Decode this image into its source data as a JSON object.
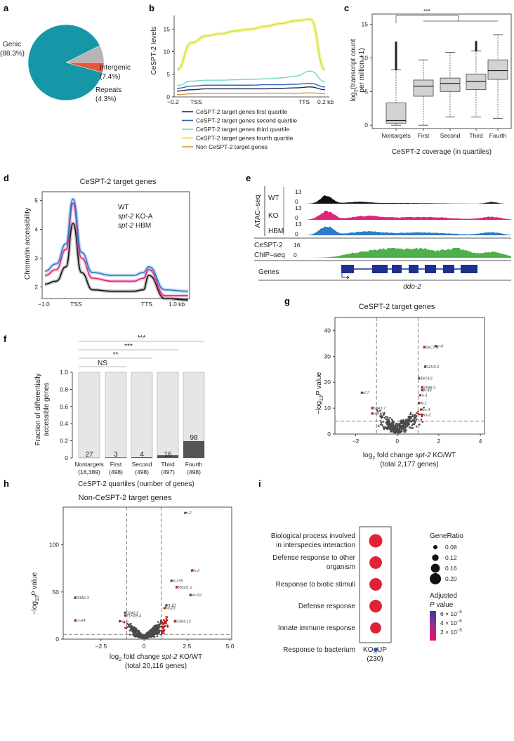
{
  "panels": [
    "a",
    "b",
    "c",
    "d",
    "e",
    "f",
    "g",
    "h",
    "i"
  ],
  "colors": {
    "teal": "#1597a8",
    "gray": "#b5b5b5",
    "orange": "#e05a3a",
    "q1": "#1f2a55",
    "q2": "#2e64b5",
    "q3": "#6ed8bf",
    "q4": "#d9df22",
    "non": "#e2913f",
    "wt": "#111111",
    "ko": "#e0247a",
    "hbm": "#2b7bcb",
    "chip": "#4db04b",
    "sig": "#c71a1a",
    "ns": "#4a4a4a",
    "bar_light": "#e6e6e6",
    "bar_dark": "#555555"
  },
  "a": {
    "chart_data": {
      "type": "pie",
      "categories": [
        "Genic",
        "Intergenic",
        "Repeats"
      ],
      "values": [
        88.3,
        7.4,
        4.3
      ],
      "labels": [
        {
          "name": "Genic",
          "pct": "(88.3%)"
        },
        {
          "name": "Intergenic",
          "pct": "(7.4%)"
        },
        {
          "name": "Repeats",
          "pct": "(4.3%)"
        }
      ]
    }
  },
  "b": {
    "chart_data": {
      "type": "line",
      "ylabel": "CeSPT-2 levels",
      "xticks": [
        "−0.2",
        "TSS",
        "TTS",
        "0.2 kb"
      ],
      "yticks": [
        "0",
        "5",
        "10",
        "15"
      ],
      "ylim": [
        0,
        18
      ],
      "series": [
        {
          "name": "CeSPT-2 target genes first quartile",
          "values": [
            1.3,
            1.6,
            1.8,
            1.8,
            1.8,
            1.8,
            1.8,
            1.9,
            2.0,
            2.2,
            1.6
          ]
        },
        {
          "name": "CeSPT-2 target genes second quartile",
          "values": [
            1.9,
            2.4,
            2.6,
            2.6,
            2.6,
            2.6,
            2.7,
            2.7,
            2.8,
            3.0,
            2.2
          ]
        },
        {
          "name": "CeSPT-2 target genes third quartile",
          "values": [
            2.5,
            3.5,
            3.7,
            3.7,
            3.8,
            3.9,
            4.0,
            4.2,
            4.6,
            5.7,
            3.4
          ]
        },
        {
          "name": "CeSPT-2 target genes fourth quartile",
          "values": [
            6.0,
            12.0,
            13.5,
            14.0,
            14.6,
            15.0,
            15.6,
            16.2,
            16.8,
            17.2,
            6.0
          ]
        },
        {
          "name": "Non CeSPT-2 target genes",
          "values": [
            0.5,
            0.7,
            0.8,
            0.8,
            0.8,
            0.8,
            0.8,
            0.8,
            0.8,
            0.9,
            0.7
          ]
        }
      ]
    }
  },
  "c": {
    "chart_data": {
      "type": "box",
      "ylabel_main": "log",
      "ylabel_sub": "2",
      "ylabel_rest": "(transcript count",
      "ylabel_line2": "per million +1)",
      "xlabel": "CeSPT-2 coverage (in quartiles)",
      "significance": "***",
      "yticks": [
        "0",
        "5",
        "10",
        "15"
      ],
      "ylim": [
        0,
        15
      ],
      "categories": [
        "Nontargets",
        "First",
        "Second",
        "Third",
        "Fourth"
      ],
      "boxes": [
        {
          "min": 0,
          "q1": 0.3,
          "median": 0.7,
          "q3": 3.3,
          "max": 8.2,
          "outliers_to": 12.4
        },
        {
          "min": 0,
          "q1": 4.3,
          "median": 5.8,
          "q3": 6.7,
          "max": 9.7,
          "outliers_to": 0
        },
        {
          "min": 1.2,
          "q1": 5.0,
          "median": 6.2,
          "q3": 7.0,
          "max": 10.8,
          "outliers_to": 0
        },
        {
          "min": 1.2,
          "q1": 5.3,
          "median": 6.5,
          "q3": 7.6,
          "max": 11.0,
          "outliers_to": 12.5
        },
        {
          "min": 1.0,
          "q1": 6.8,
          "median": 8.1,
          "q3": 9.7,
          "max": 13.4,
          "outliers_to": 0
        }
      ]
    }
  },
  "d": {
    "chart_data": {
      "type": "line",
      "title": "CeSPT-2 target genes",
      "ylabel": "Chromatin accessibility",
      "xticks": [
        "−1.0",
        "TSS",
        "TTS",
        "1.0 kb"
      ],
      "yticks": [
        "2",
        "3",
        "4",
        "5"
      ],
      "ylim": [
        1.6,
        5.3
      ],
      "legend": [
        {
          "prefix": "",
          "italic": "",
          "suffix": "WT"
        },
        {
          "prefix": "",
          "italic": "spt-2",
          "suffix": " KO-A"
        },
        {
          "prefix": "",
          "italic": "spt-2",
          "suffix": " HBM"
        }
      ],
      "series": [
        {
          "name": "WT",
          "values": [
            2.1,
            2.2,
            2.7,
            4.2,
            2.5,
            1.9,
            1.85,
            1.85,
            1.9,
            2.4,
            1.6,
            1.55
          ]
        },
        {
          "name": "spt-2 KO-A",
          "values": [
            2.4,
            2.6,
            3.3,
            4.9,
            3.0,
            2.3,
            2.2,
            2.2,
            2.3,
            2.6,
            1.7,
            1.7
          ]
        },
        {
          "name": "spt-2 HBM",
          "values": [
            2.55,
            2.8,
            3.5,
            5.05,
            3.2,
            2.5,
            2.4,
            2.4,
            2.5,
            2.7,
            1.9,
            1.85
          ]
        }
      ]
    }
  },
  "e": {
    "tracks": [
      {
        "label": "WT",
        "max": "13",
        "min": "0"
      },
      {
        "label": "KO",
        "max": "13",
        "min": "0"
      },
      {
        "label": "HBM",
        "max": "13",
        "min": "0"
      },
      {
        "label": "CeSPT-2",
        "label2": "ChIP–seq",
        "max": "16",
        "min": "0"
      }
    ],
    "group_label": "ATAC–seq",
    "genes_label": "Genes",
    "gene_name": "ddo-2"
  },
  "f": {
    "chart_data": {
      "type": "bar",
      "ylabel1": "Fraction of differentially",
      "ylabel2": "accessible genes",
      "xlabel": "CeSPT-2 quartiles (number of genes)",
      "yticks": [
        "0",
        "0.2",
        "0.4",
        "0.6",
        "0.8",
        "1.0"
      ],
      "ylim": [
        0,
        1
      ],
      "categories": [
        "Nontargets",
        "First",
        "Second",
        "Third",
        "Fourth"
      ],
      "ns": [
        "(18,389)",
        "(498)",
        "(498)",
        "(497)",
        "(498)"
      ],
      "counts": [
        "27",
        "3",
        "4",
        "16",
        "98"
      ],
      "fraction_diff": [
        0.0015,
        0.006,
        0.008,
        0.032,
        0.197
      ],
      "sig_labels": [
        "NS",
        "**",
        "***",
        "***"
      ]
    }
  },
  "g": {
    "chart_data": {
      "type": "scatter",
      "title": "CeSPT-2 target genes",
      "ylabel_pre": "−log",
      "ylabel_sub": "10",
      "ylabel_it": "P",
      "ylabel_post": " value",
      "xlabel_pre": "log",
      "xlabel_sub": "2",
      "xlabel_mid": " fold change ",
      "xlabel_it": "spt-2",
      "xlabel_post": " KO/WT",
      "xlabel2": "(total 2,177 genes)",
      "xticks": [
        "−2",
        "0",
        "2",
        "4"
      ],
      "yticks": [
        "0",
        "10",
        "20",
        "30",
        "40"
      ],
      "xlim": [
        -3,
        4.2
      ],
      "ylim": [
        0,
        45
      ],
      "labeled_points": [
        {
          "gene": "R06C7.4",
          "x": 1.3,
          "y": 33.5
        },
        {
          "gene": "cpr-4",
          "x": 1.85,
          "y": 34
        },
        {
          "gene": "R11H5.3",
          "x": 1.35,
          "y": 26
        },
        {
          "gene": "F39C4.5",
          "x": 1.05,
          "y": 21.5
        },
        {
          "gene": "F24B8.3",
          "x": 1.2,
          "y": 18
        },
        {
          "gene": "hlh-40",
          "x": 1.2,
          "y": 17
        },
        {
          "gene": "sre-1",
          "x": 1.1,
          "y": 15
        },
        {
          "gene": "pdi-1",
          "x": 1.05,
          "y": 12
        },
        {
          "gene": "clec-3",
          "x": 1.15,
          "y": 9.5
        },
        {
          "gene": "fmo-2",
          "x": 1.2,
          "y": 7.5
        },
        {
          "gene": "col-7",
          "x": -1.7,
          "y": 16
        },
        {
          "gene": "F53A3.7",
          "x": -1.2,
          "y": 10
        },
        {
          "gene": "acdh-2",
          "x": -1.2,
          "y": 8
        }
      ]
    }
  },
  "h": {
    "chart_data": {
      "type": "scatter",
      "title": "Non-CeSPT-2 target genes",
      "ylabel_pre": "−log",
      "ylabel_sub": "10",
      "ylabel_it": "P",
      "ylabel_post": " value",
      "xlabel_pre": "log",
      "xlabel_sub": "2",
      "xlabel_mid": " fold change ",
      "xlabel_it": "spt-2",
      "xlabel_post": " KO/WT",
      "xlabel2": "(total 20,116 genes)",
      "xticks": [
        "−2.5",
        "0",
        "2.5",
        "5.0"
      ],
      "yticks": [
        "0",
        "50",
        "100"
      ],
      "xlim": [
        -4.7,
        5.1
      ],
      "ylim": [
        0,
        140
      ],
      "labeled_points": [
        {
          "gene": "sri-2",
          "x": 2.4,
          "y": 134
        },
        {
          "gene": "thn-2",
          "x": 2.8,
          "y": 73
        },
        {
          "gene": "col-135",
          "x": 1.6,
          "y": 62
        },
        {
          "gene": "F55G11.2",
          "x": 1.9,
          "y": 55
        },
        {
          "gene": "clec-52",
          "x": 2.7,
          "y": 47
        },
        {
          "gene": "gst-10",
          "x": 1.3,
          "y": 36
        },
        {
          "gene": "dod-23",
          "x": 1.2,
          "y": 33
        },
        {
          "gene": "C23A5.3",
          "x": -4.0,
          "y": 44
        },
        {
          "gene": "K02A6.9",
          "x": -1.1,
          "y": 28
        },
        {
          "gene": "Y71H2B.4",
          "x": -1.1,
          "y": 25
        },
        {
          "gene": "acs-24",
          "x": -4.0,
          "y": 20
        },
        {
          "gene": "fmo-5",
          "x": -1.4,
          "y": 19
        },
        {
          "gene": "C03A4.13",
          "x": 1.8,
          "y": 19
        }
      ]
    }
  },
  "i": {
    "chart_data": {
      "type": "dot",
      "terms": [
        {
          "line1": "Biological process involved",
          "line2": "in interspecies interaction",
          "ratio": 0.2,
          "padj": 1.5e-05
        },
        {
          "line1": "Defense response to other",
          "line2": "organism",
          "ratio": 0.19,
          "padj": 1.6e-05
        },
        {
          "line1": "Response to biotic stimuli",
          "line2": "",
          "ratio": 0.19,
          "padj": 1.6e-05
        },
        {
          "line1": "Defense response",
          "line2": "",
          "ratio": 0.19,
          "padj": 1.6e-05
        },
        {
          "line1": "Innate immune response",
          "line2": "",
          "ratio": 0.17,
          "padj": 1.7e-05
        },
        {
          "line1": "Response to bacterium",
          "line2": "",
          "ratio": 0.08,
          "padj": 6.5e-05
        }
      ],
      "xlabel1": "KO_UP",
      "xlabel2": "(230)",
      "size_title": "GeneRatio",
      "size_legend": [
        "0.08",
        "0.12",
        "0.16",
        "0.20"
      ],
      "color_title1": "Adjusted",
      "color_title_it": "P",
      "color_title2": " value",
      "color_legend": [
        "6 × 10",
        "4 × 10",
        "2 × 10"
      ],
      "color_legend_exp": "−5"
    }
  }
}
